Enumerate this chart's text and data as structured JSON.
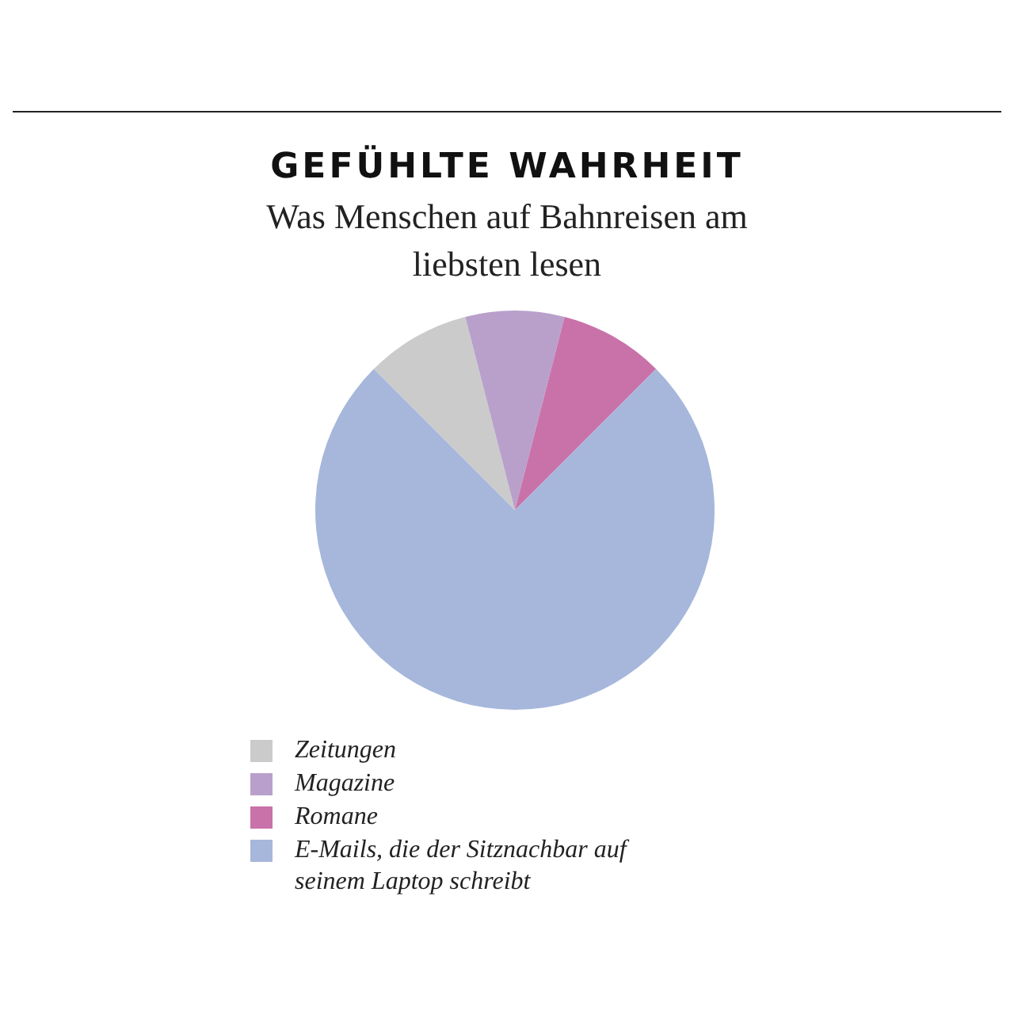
{
  "chart_data": {
    "type": "pie",
    "title": "GEFÜHLTE WAHRHEIT",
    "subtitle": "Was Menschen auf Bahnreisen am liebsten lesen",
    "categories": [
      "Zeitungen",
      "Magazine",
      "Romane",
      "E-Mails, die der Sitznachbar auf seinem Laptop schreibt"
    ],
    "values": [
      8.5,
      8,
      8.5,
      75
    ],
    "colors": [
      "#cbcbcb",
      "#b9a0cb",
      "#c972aa",
      "#a6b7db"
    ],
    "legend": "bottom"
  }
}
